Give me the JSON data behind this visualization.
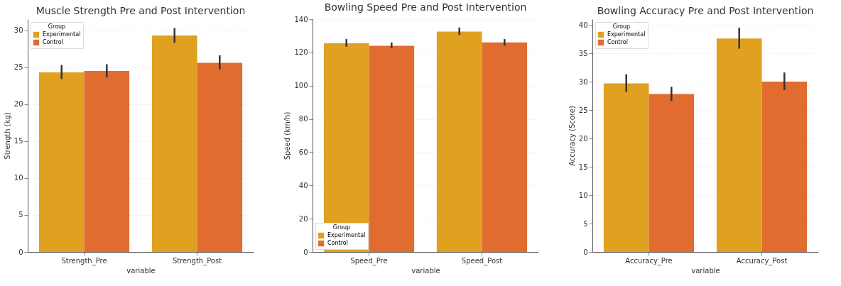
{
  "chart_data": [
    {
      "type": "bar",
      "title": "Muscle Strength Pre and Post Intervention",
      "xlabel": "variable",
      "ylabel": "Strength (kg)",
      "legend_title": "Group",
      "legend": "top left",
      "grid": "y",
      "categories": [
        "Strength_Pre",
        "Strength_Post"
      ],
      "ylim": [
        0,
        31.5
      ],
      "yticks": [
        0,
        5,
        10,
        15,
        20,
        25,
        30
      ],
      "series": [
        {
          "name": "Experimental",
          "color": "#e0a020",
          "values": [
            24.3,
            29.3
          ],
          "errors": [
            [
              23.4,
              25.3
            ],
            [
              28.3,
              30.3
            ]
          ]
        },
        {
          "name": "Control",
          "color": "#e06c30",
          "values": [
            24.5,
            25.6
          ],
          "errors": [
            [
              23.6,
              25.4
            ],
            [
              24.7,
              26.6
            ]
          ]
        }
      ]
    },
    {
      "type": "bar",
      "title": "Bowling Speed Pre and Post Intervention",
      "xlabel": "variable",
      "ylabel": "Speed (km/h)",
      "legend_title": "Group",
      "legend": "bottom left",
      "grid": "y",
      "categories": [
        "Speed_Pre",
        "Speed_Post"
      ],
      "ylim": [
        0,
        140
      ],
      "yticks": [
        0,
        20,
        40,
        60,
        80,
        100,
        120,
        140
      ],
      "series": [
        {
          "name": "Experimental",
          "color": "#e0a020",
          "values": [
            125.5,
            132.5
          ],
          "errors": [
            [
              123.5,
              128
            ],
            [
              130.5,
              135
            ]
          ]
        },
        {
          "name": "Control",
          "color": "#e06c30",
          "values": [
            124,
            126
          ],
          "errors": [
            [
              122.5,
              126
            ],
            [
              124,
              128
            ]
          ]
        }
      ]
    },
    {
      "type": "bar",
      "title": "Bowling Accuracy Pre and Post Intervention",
      "xlabel": "variable",
      "ylabel": "Accuracy (Score)",
      "legend_title": "Group",
      "legend": "top left",
      "grid": "y",
      "categories": [
        "Accuracy_Pre",
        "Accuracy_Post"
      ],
      "ylim": [
        0,
        41
      ],
      "yticks": [
        0,
        5,
        10,
        15,
        20,
        25,
        30,
        35,
        40
      ],
      "series": [
        {
          "name": "Experimental",
          "color": "#e0a020",
          "values": [
            29.7,
            37.6
          ],
          "errors": [
            [
              28.2,
              31.3
            ],
            [
              35.8,
              39.5
            ]
          ]
        },
        {
          "name": "Control",
          "color": "#e06c30",
          "values": [
            27.8,
            30
          ],
          "errors": [
            [
              26.6,
              29.1
            ],
            [
              28.5,
              31.6
            ]
          ]
        }
      ]
    }
  ]
}
